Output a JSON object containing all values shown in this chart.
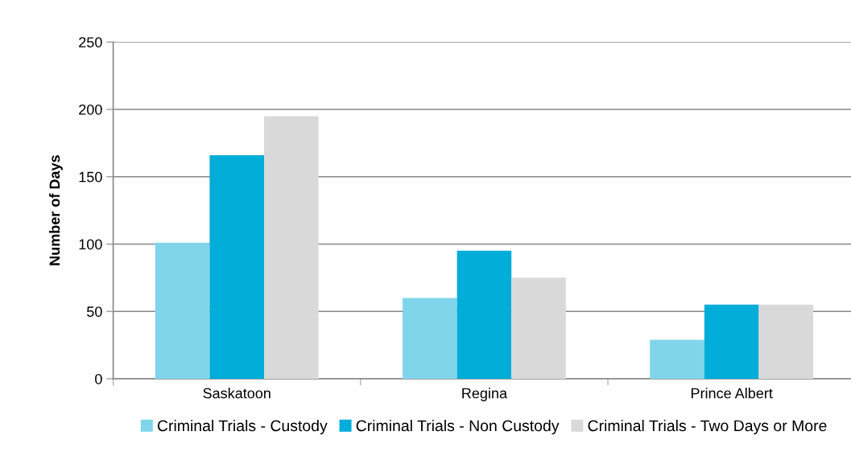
{
  "chart_data": {
    "type": "bar",
    "ylabel": "Number of Days",
    "categories": [
      "Saskatoon",
      "Regina",
      "Prince Albert"
    ],
    "series": [
      {
        "name": "Criminal Trials - Custody",
        "color": "#80d5eb",
        "values": [
          101,
          60,
          29
        ]
      },
      {
        "name": "Criminal Trials - Non Custody",
        "color": "#00acd8",
        "values": [
          166,
          95,
          55
        ]
      },
      {
        "name": "Criminal Trials - Two Days or More",
        "color": "#d9d9d9",
        "values": [
          195,
          75,
          55
        ]
      }
    ],
    "ylim": [
      0,
      250
    ],
    "yticks": [
      0,
      50,
      100,
      150,
      200,
      250
    ],
    "grid": "y",
    "legend": "bottom"
  }
}
